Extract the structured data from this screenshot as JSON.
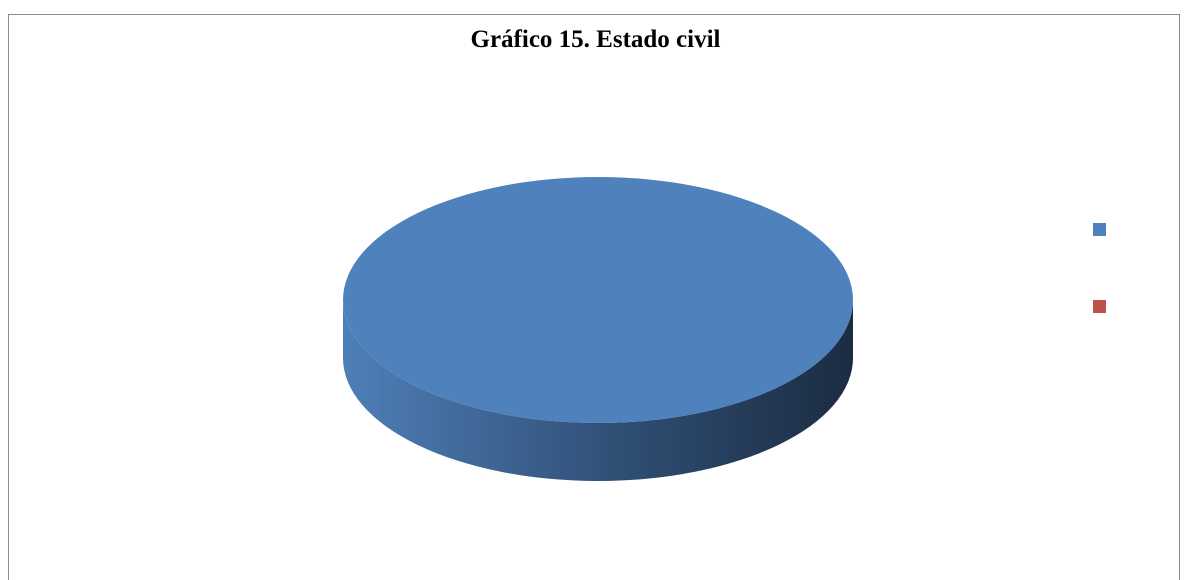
{
  "chart_data": {
    "type": "pie",
    "title": "Gráfico 15. Estado civil",
    "categories": [
      "",
      ""
    ],
    "values": [
      100,
      0
    ],
    "colors": [
      "#4f81bd",
      "#c0504d"
    ],
    "style": "3d",
    "legend_position": "right"
  }
}
